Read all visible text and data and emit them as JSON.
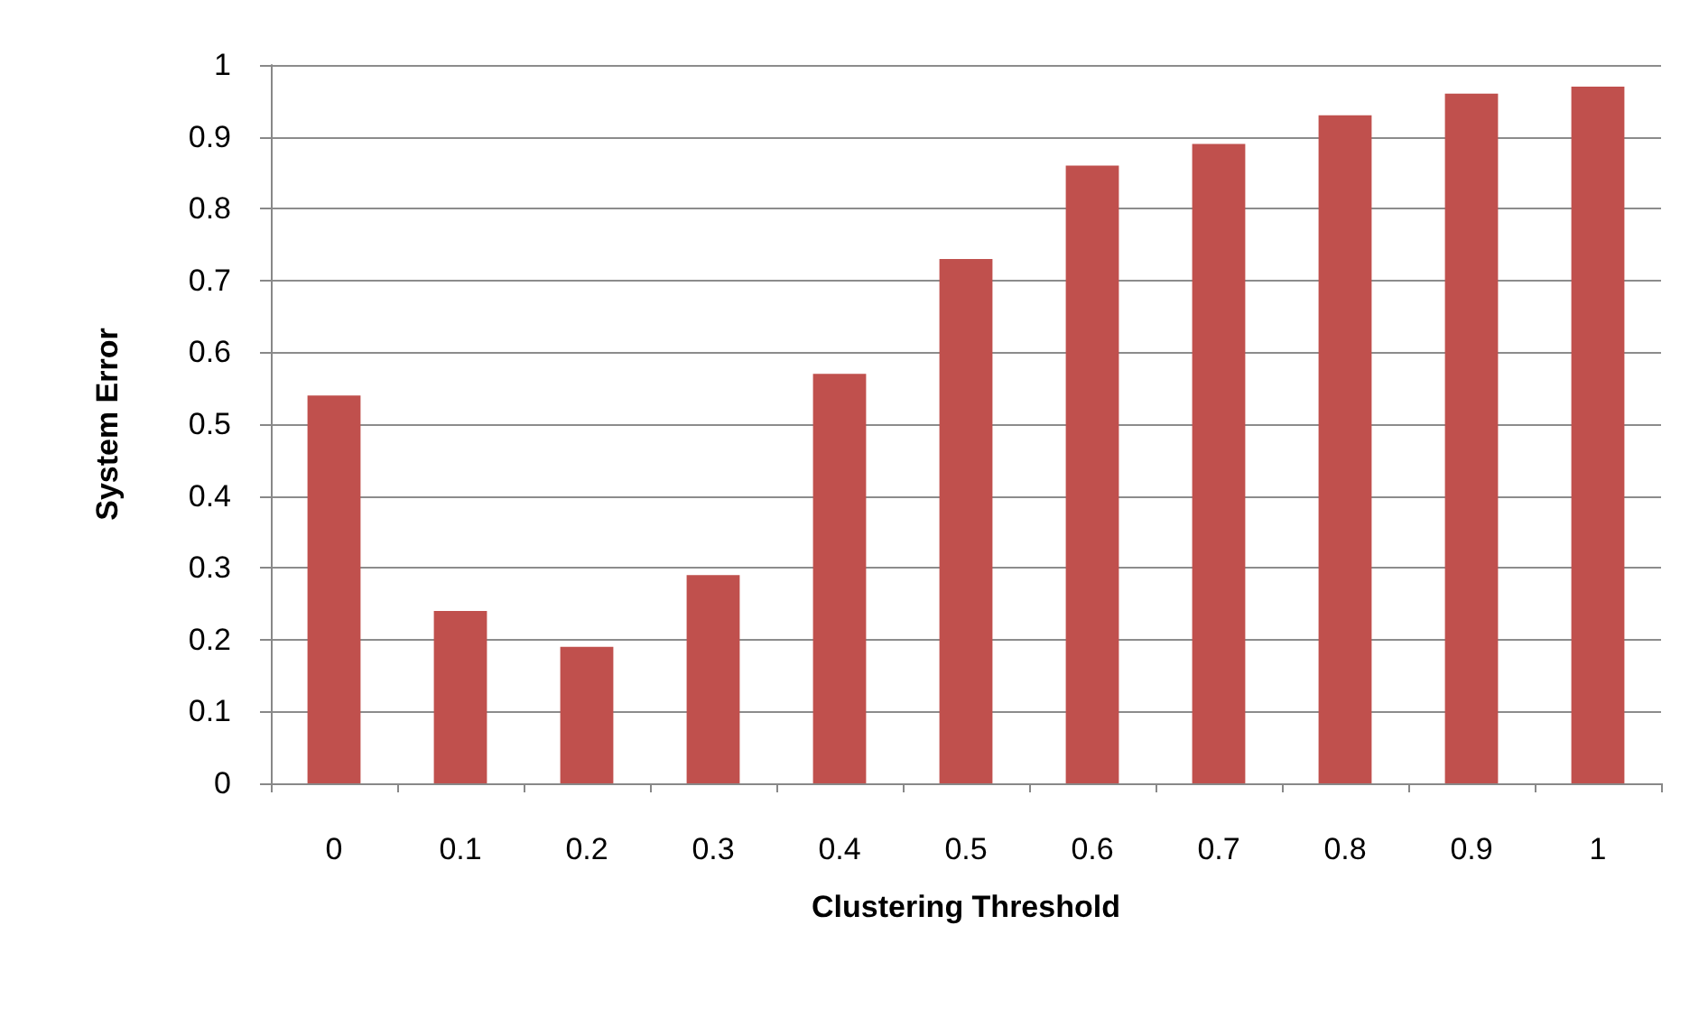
{
  "chart_data": {
    "type": "bar",
    "xlabel": "Clustering Threshold",
    "ylabel": "System Error",
    "categories": [
      "0",
      "0.1",
      "0.2",
      "0.3",
      "0.4",
      "0.5",
      "0.6",
      "0.7",
      "0.8",
      "0.9",
      "1"
    ],
    "values": [
      0.54,
      0.24,
      0.19,
      0.29,
      0.57,
      0.73,
      0.86,
      0.89,
      0.93,
      0.96,
      0.97
    ],
    "color": "#c0504d",
    "ylim": [
      0,
      1
    ],
    "yticks": [
      0,
      0.1,
      0.2,
      0.3,
      0.4,
      0.5,
      0.6,
      0.7,
      0.8,
      0.9,
      1
    ],
    "grid": "y"
  }
}
